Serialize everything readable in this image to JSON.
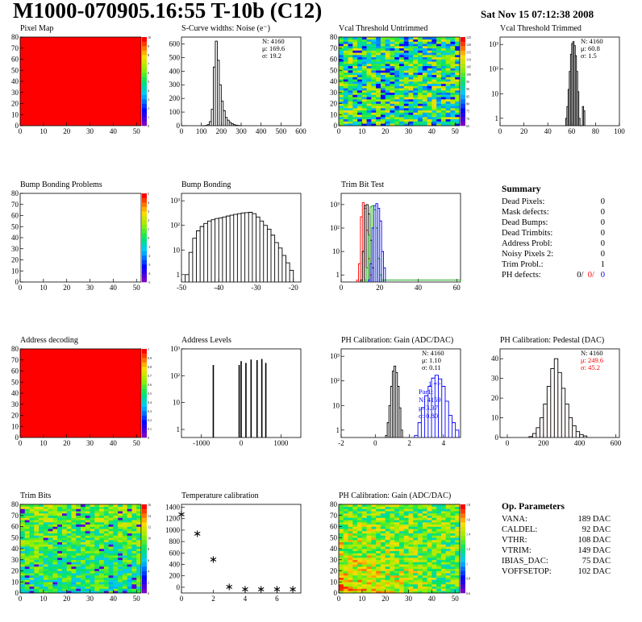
{
  "header": {
    "title": "M1000-070905.16:55 T-10b (C12)",
    "date": "Sat Nov 15 07:12:38 2008"
  },
  "colors": {
    "fill_red": "#ff0000",
    "blue": "#0000ff",
    "green": "#00a000"
  },
  "chart_data": [
    {
      "id": "pixel-map",
      "type": "heatmap",
      "title": "Pixel Map",
      "xlim": [
        0,
        52
      ],
      "ylim": [
        0,
        80
      ],
      "x_ticks": [
        "0",
        "10",
        "20",
        "30",
        "40",
        "50"
      ],
      "y_ticks": [
        "0",
        "10",
        "20",
        "30",
        "40",
        "50",
        "60",
        "70",
        "80"
      ],
      "fill": "uniform-max",
      "palette_ticks": [
        "0",
        "1",
        "2",
        "3",
        "4",
        "5",
        "6",
        "7",
        "8",
        "9",
        "10"
      ]
    },
    {
      "id": "noise",
      "type": "line",
      "title": "S-Curve widths: Noise (e⁻)",
      "x_ticks": [
        "0",
        "100",
        "200",
        "300",
        "400",
        "500",
        "600"
      ],
      "y_ticks": [
        "0",
        "100",
        "200",
        "300",
        "400",
        "500",
        "600"
      ],
      "xlim": [
        0,
        600
      ],
      "ylim": [
        0,
        650
      ],
      "stats": [
        "N: 4160",
        "μ: 169.6",
        "σ: 19.2"
      ],
      "x": [
        100,
        120,
        130,
        140,
        150,
        160,
        170,
        180,
        190,
        200,
        210,
        220,
        230,
        240,
        250,
        260,
        270,
        280,
        290,
        300
      ],
      "y": [
        0,
        2,
        8,
        30,
        120,
        430,
        620,
        480,
        300,
        180,
        110,
        60,
        40,
        25,
        15,
        8,
        4,
        2,
        1,
        0
      ]
    },
    {
      "id": "vcal-untrimmed",
      "type": "heatmap",
      "title": "Vcal Threshold Untrimmed",
      "xlim": [
        0,
        52
      ],
      "ylim": [
        0,
        80
      ],
      "x_ticks": [
        "0",
        "10",
        "20",
        "30",
        "40",
        "50"
      ],
      "y_ticks": [
        "0",
        "10",
        "20",
        "30",
        "40",
        "50",
        "60",
        "70",
        "80"
      ],
      "palette_ticks": [
        "65",
        "70",
        "75",
        "80",
        "85",
        "90",
        "95",
        "100",
        "105",
        "110",
        "115",
        "120",
        "125"
      ]
    },
    {
      "id": "vcal-trimmed",
      "type": "line",
      "title": "Vcal Threshold Trimmed",
      "log_y": true,
      "x_ticks": [
        "0",
        "20",
        "40",
        "60",
        "80",
        "100"
      ],
      "y_ticks": [
        "1",
        "10",
        "10²",
        "10³"
      ],
      "xlim": [
        0,
        100
      ],
      "ylim": [
        0.5,
        2000
      ],
      "stats": [
        "N: 4160",
        "μ: 60.8",
        "σ:  1.5"
      ],
      "x": [
        55,
        56,
        57,
        58,
        59,
        60,
        61,
        62,
        63,
        64,
        65,
        66,
        67,
        68,
        69,
        70,
        71
      ],
      "y": [
        1,
        3,
        15,
        80,
        400,
        1100,
        1300,
        900,
        350,
        80,
        12,
        1,
        0.5,
        0.5,
        3,
        2,
        0.5
      ]
    },
    {
      "id": "bump-problems",
      "type": "heatmap",
      "title": "Bump Bonding Problems",
      "xlim": [
        0,
        52
      ],
      "ylim": [
        0,
        80
      ],
      "x_ticks": [
        "0",
        "10",
        "20",
        "30",
        "40",
        "50"
      ],
      "y_ticks": [
        "0",
        "10",
        "20",
        "30",
        "40",
        "50",
        "60",
        "70",
        "80"
      ],
      "fill": "empty",
      "palette_ticks": [
        "-5",
        "-4",
        "-3",
        "-2",
        "-1",
        "0",
        "1",
        "2",
        "3",
        "4",
        "5"
      ]
    },
    {
      "id": "bump-bonding",
      "type": "line",
      "title": "Bump Bonding",
      "log_y": true,
      "x_ticks": [
        "-50",
        "-40",
        "-30",
        "-20"
      ],
      "y_ticks": [
        "1",
        "10",
        "10²",
        "10³"
      ],
      "xlim": [
        -50,
        -18
      ],
      "ylim": [
        0.5,
        2000
      ],
      "x": [
        -49,
        -48,
        -47,
        -46,
        -45,
        -44,
        -43,
        -42,
        -41,
        -40,
        -39,
        -38,
        -37,
        -36,
        -35,
        -34,
        -33,
        -32,
        -31,
        -30,
        -29,
        -28,
        -27,
        -26,
        -25,
        -24,
        -23,
        -22,
        -21,
        -20
      ],
      "y": [
        1,
        8,
        30,
        60,
        90,
        120,
        150,
        170,
        190,
        200,
        220,
        240,
        260,
        280,
        300,
        320,
        330,
        340,
        300,
        220,
        150,
        100,
        70,
        40,
        20,
        12,
        6,
        3,
        1.5,
        0.6
      ]
    },
    {
      "id": "trim-bit-test",
      "type": "line",
      "title": "Trim Bit Test",
      "log_y": true,
      "x_ticks": [
        "0",
        "20",
        "40",
        "60"
      ],
      "y_ticks": [
        "1",
        "10",
        "10²",
        "10³"
      ],
      "xlim": [
        0,
        62
      ],
      "ylim": [
        0.5,
        3000
      ],
      "series": [
        {
          "color": "#ff0000",
          "x": [
            8,
            9,
            10,
            11,
            12,
            13,
            14,
            15,
            16
          ],
          "y": [
            0.6,
            3,
            300,
            1200,
            700,
            80,
            5,
            1,
            0.6
          ]
        },
        {
          "color": "#000000",
          "x": [
            10,
            11,
            12,
            13,
            14,
            15,
            16,
            17
          ],
          "y": [
            0.6,
            10,
            900,
            1000,
            400,
            30,
            2,
            0.6
          ]
        },
        {
          "color": "#00a000",
          "x": [
            12,
            13,
            14,
            15,
            16,
            17,
            18,
            19,
            20,
            21,
            22,
            62
          ],
          "y": [
            0.6,
            2,
            50,
            800,
            900,
            600,
            100,
            5,
            1,
            0.6,
            0.6,
            0.6
          ]
        },
        {
          "color": "#0000ff",
          "x": [
            14,
            15,
            16,
            17,
            18,
            19,
            20,
            21,
            22,
            23
          ],
          "y": [
            0.6,
            3,
            100,
            900,
            1100,
            700,
            200,
            10,
            2,
            0.6
          ]
        }
      ]
    },
    {
      "id": "address-decoding",
      "type": "heatmap",
      "title": "Address decoding",
      "xlim": [
        0,
        52
      ],
      "ylim": [
        0,
        80
      ],
      "x_ticks": [
        "0",
        "10",
        "20",
        "30",
        "40",
        "50"
      ],
      "y_ticks": [
        "0",
        "10",
        "20",
        "30",
        "40",
        "50",
        "60",
        "70",
        "80"
      ],
      "fill": "uniform-max",
      "palette_ticks": [
        "0",
        "0.1",
        "0.2",
        "0.3",
        "0.4",
        "0.5",
        "0.6",
        "0.7",
        "0.8",
        "0.9",
        "1"
      ]
    },
    {
      "id": "address-levels",
      "type": "bar",
      "title": "Address Levels",
      "log_y": true,
      "x_ticks": [
        "-1000",
        "0",
        "1000"
      ],
      "y_ticks": [
        "1",
        "10",
        "10²",
        "10³"
      ],
      "xlim": [
        -1500,
        1500
      ],
      "ylim": [
        0.5,
        1000
      ],
      "x": [
        -700,
        -50,
        0,
        120,
        250,
        400,
        520,
        620
      ],
      "y": [
        250,
        250,
        350,
        300,
        400,
        380,
        420,
        300
      ]
    },
    {
      "id": "ph-gain",
      "type": "line",
      "title": "PH Calibration: Gain (ADC/DAC)",
      "log_y": true,
      "x_ticks": [
        "-2",
        "0",
        "2",
        "4"
      ],
      "y_ticks": [
        "1",
        "10",
        "10²",
        "10³"
      ],
      "xlim": [
        -2,
        5
      ],
      "ylim": [
        0.5,
        2000
      ],
      "stats": [
        "N: 4160",
        "μ: 1.10",
        "σ: 0.11"
      ],
      "blue_stats": [
        "1 =>",
        "Par1:",
        "N: 4159",
        "μ: 3.37",
        "σ: 0.80"
      ],
      "series": [
        {
          "color": "#000000",
          "x": [
            0.6,
            0.7,
            0.8,
            0.9,
            1.0,
            1.1,
            1.2,
            1.3,
            1.4,
            1.5,
            1.6
          ],
          "y": [
            0.6,
            2,
            10,
            60,
            250,
            400,
            220,
            60,
            8,
            1,
            0.6
          ]
        },
        {
          "color": "#0000ff",
          "x": [
            2.3,
            2.5,
            2.7,
            2.9,
            3.1,
            3.3,
            3.5,
            3.7,
            3.9,
            4.1,
            4.3,
            4.5,
            4.7,
            4.9
          ],
          "y": [
            0.6,
            2,
            8,
            25,
            60,
            130,
            170,
            120,
            60,
            15,
            4,
            2,
            1,
            0.6
          ]
        }
      ]
    },
    {
      "id": "ph-pedestal",
      "type": "line",
      "title": "PH Calibration: Pedestal (DAC)",
      "x_ticks": [
        "0",
        "200",
        "400",
        "600"
      ],
      "y_ticks": [
        "0",
        "10",
        "20",
        "30",
        "40"
      ],
      "xlim": [
        -40,
        620
      ],
      "ylim": [
        0,
        45
      ],
      "stats": [
        "N: 4160",
        "μ: 249.6",
        "σ: 45.2"
      ],
      "x": [
        120,
        140,
        160,
        180,
        200,
        220,
        240,
        260,
        280,
        300,
        320,
        340,
        360,
        380,
        400,
        420,
        440
      ],
      "y": [
        0.5,
        2,
        5,
        10,
        17,
        26,
        35,
        40,
        33,
        25,
        17,
        10,
        6,
        3,
        1.5,
        0.8,
        0.3
      ]
    },
    {
      "id": "trim-bits",
      "type": "heatmap",
      "title": "Trim Bits",
      "xlim": [
        0,
        52
      ],
      "ylim": [
        0,
        80
      ],
      "x_ticks": [
        "0",
        "10",
        "20",
        "30",
        "40",
        "50"
      ],
      "y_ticks": [
        "0",
        "10",
        "20",
        "30",
        "40",
        "50",
        "60",
        "70",
        "80"
      ],
      "palette_ticks": [
        "0",
        "2",
        "4",
        "6",
        "8",
        "10",
        "12",
        "14",
        "16"
      ]
    },
    {
      "id": "temperature-calibration",
      "type": "scatter",
      "title": "Temperature calibration",
      "x_ticks": [
        "0",
        "2",
        "4",
        "6"
      ],
      "y_ticks": [
        "0",
        "200",
        "400",
        "600",
        "800",
        "1000",
        "1200",
        "1400"
      ],
      "xlim": [
        0,
        7.5
      ],
      "ylim": [
        -100,
        1450
      ],
      "x": [
        0,
        1,
        2,
        3,
        4,
        5,
        6,
        7
      ],
      "y": [
        1290,
        950,
        500,
        20,
        -20,
        -20,
        -20,
        -20
      ]
    },
    {
      "id": "ph-gain-map",
      "type": "heatmap",
      "title": "PH Calibration: Gain (ADC/DAC)",
      "xlim": [
        0,
        52
      ],
      "ylim": [
        0,
        80
      ],
      "x_ticks": [
        "0",
        "10",
        "20",
        "30",
        "40",
        "50"
      ],
      "y_ticks": [
        "0",
        "10",
        "20",
        "30",
        "40",
        "50",
        "60",
        "70",
        "80"
      ],
      "palette_ticks": [
        "0.6",
        "0.8",
        "1",
        "1.2",
        "1.4",
        "1.6",
        "1.8"
      ]
    }
  ],
  "summary": {
    "heading": "Summary",
    "rows": [
      {
        "label": "Dead Pixels:",
        "value": "0"
      },
      {
        "label": "Mask defects:",
        "value": "0"
      },
      {
        "label": "Dead Bumps:",
        "value": "0"
      },
      {
        "label": "Dead Trimbits:",
        "value": "0"
      },
      {
        "label": "Address Probl:",
        "value": "0"
      },
      {
        "label": "Noisy Pixels 2:",
        "value": "0"
      },
      {
        "label": "Trim Probl.:",
        "value": "1"
      }
    ],
    "ph_defects": {
      "label": "PH defects:",
      "v1": "0/",
      "v2": "0/",
      "v3": "0"
    }
  },
  "op_parameters": {
    "heading": "Op. Parameters",
    "rows": [
      {
        "label": "VANA:",
        "value": "189 DAC"
      },
      {
        "label": "CALDEL:",
        "value": "92 DAC"
      },
      {
        "label": "VTHR:",
        "value": "108 DAC"
      },
      {
        "label": "VTRIM:",
        "value": "149 DAC"
      },
      {
        "label": "IBIAS_DAC:",
        "value": "75 DAC"
      },
      {
        "label": "VOFFSETOP:",
        "value": "102 DAC"
      }
    ]
  }
}
